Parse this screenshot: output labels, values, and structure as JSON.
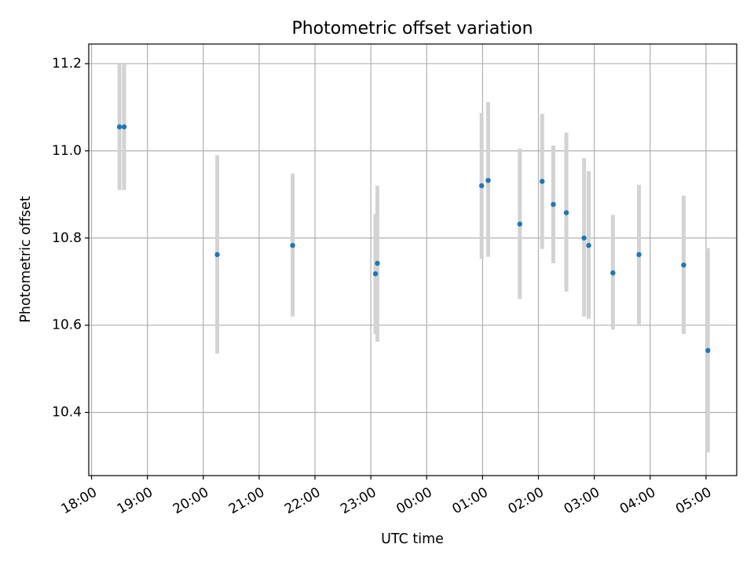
{
  "chart_data": {
    "type": "scatter",
    "title": "Photometric offset variation",
    "xlabel": "UTC time",
    "ylabel": "Photometric offset",
    "x_ticks": [
      "18:00",
      "19:00",
      "20:00",
      "21:00",
      "22:00",
      "23:00",
      "00:00",
      "01:00",
      "02:00",
      "03:00",
      "04:00",
      "05:00"
    ],
    "y_ticks": [
      "10.4",
      "10.6",
      "10.8",
      "11.0",
      "11.2"
    ],
    "xlim": [
      "17:57",
      "05:33"
    ],
    "ylim": [
      10.255,
      11.245
    ],
    "grid": true,
    "colors": {
      "point": "#1f77b4",
      "errorbar": "#d3d3d3",
      "grid": "#b0b0b0"
    },
    "points": [
      {
        "x": "18:30",
        "y": 11.055,
        "yerr_low": 10.91,
        "yerr_high": 11.2
      },
      {
        "x": "18:35",
        "y": 11.055,
        "yerr_low": 10.91,
        "yerr_high": 11.2
      },
      {
        "x": "20:15",
        "y": 10.762,
        "yerr_low": 10.535,
        "yerr_high": 10.99
      },
      {
        "x": "21:36",
        "y": 10.783,
        "yerr_low": 10.62,
        "yerr_high": 10.948
      },
      {
        "x": "23:05",
        "y": 10.718,
        "yerr_low": 10.58,
        "yerr_high": 10.855
      },
      {
        "x": "23:07",
        "y": 10.742,
        "yerr_low": 10.562,
        "yerr_high": 10.92
      },
      {
        "x": "00:59",
        "y": 10.92,
        "yerr_low": 10.752,
        "yerr_high": 11.087
      },
      {
        "x": "01:06",
        "y": 10.932,
        "yerr_low": 10.757,
        "yerr_high": 11.112
      },
      {
        "x": "01:40",
        "y": 10.832,
        "yerr_low": 10.66,
        "yerr_high": 11.005
      },
      {
        "x": "02:04",
        "y": 10.93,
        "yerr_low": 10.775,
        "yerr_high": 11.085
      },
      {
        "x": "02:16",
        "y": 10.877,
        "yerr_low": 10.742,
        "yerr_high": 11.012
      },
      {
        "x": "02:30",
        "y": 10.858,
        "yerr_low": 10.677,
        "yerr_high": 11.042
      },
      {
        "x": "02:49",
        "y": 10.8,
        "yerr_low": 10.62,
        "yerr_high": 10.983
      },
      {
        "x": "02:54",
        "y": 10.783,
        "yerr_low": 10.615,
        "yerr_high": 10.953
      },
      {
        "x": "03:20",
        "y": 10.72,
        "yerr_low": 10.59,
        "yerr_high": 10.853
      },
      {
        "x": "03:48",
        "y": 10.762,
        "yerr_low": 10.602,
        "yerr_high": 10.922
      },
      {
        "x": "04:36",
        "y": 10.738,
        "yerr_low": 10.58,
        "yerr_high": 10.897
      },
      {
        "x": "05:02",
        "y": 10.542,
        "yerr_low": 10.308,
        "yerr_high": 10.777
      }
    ]
  }
}
